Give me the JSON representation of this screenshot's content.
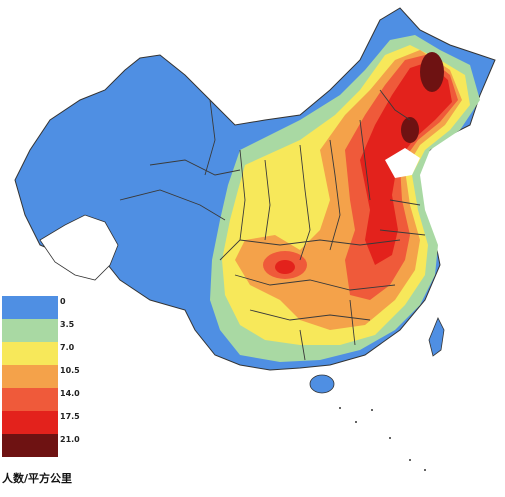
{
  "legend": {
    "title": "人数/平方公里",
    "items": [
      {
        "label": "0",
        "color": "#4f8fe3"
      },
      {
        "label": "3.5",
        "color": "#a9d9a3"
      },
      {
        "label": "7.0",
        "color": "#f7e85a"
      },
      {
        "label": "10.5",
        "color": "#f4a24a"
      },
      {
        "label": "14.0",
        "color": "#ef5a3a"
      },
      {
        "label": "17.5",
        "color": "#e3221c"
      },
      {
        "label": "21.0",
        "color": "#6e1212"
      }
    ]
  },
  "colors": {
    "blue": "#4f8fe3",
    "green": "#a9d9a3",
    "yellow": "#f7e85a",
    "orange": "#f4a24a",
    "red_orange": "#ef5a3a",
    "red": "#e3221c",
    "dark": "#6e1212",
    "boundary": "#3a3a3a"
  }
}
